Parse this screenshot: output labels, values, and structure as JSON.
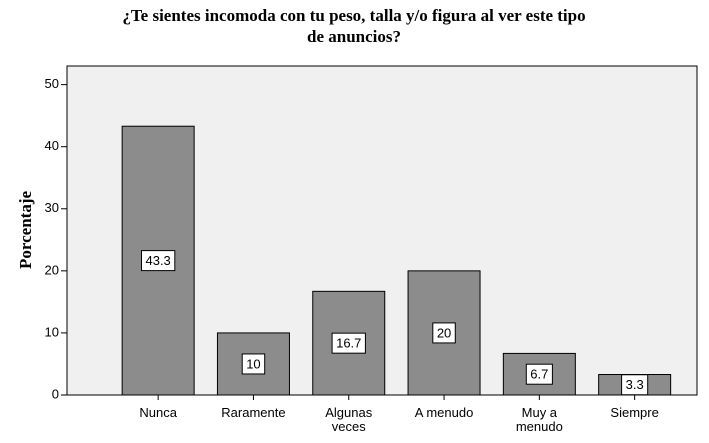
{
  "chart_data": {
    "type": "bar",
    "title": [
      "¿Te sientes incomoda con tu peso, talla y/o figura al ver este tipo",
      "de anuncios?"
    ],
    "y_label": "Porcentaje",
    "categories": [
      "Nunca",
      "Raramente",
      "Algunas veces",
      "A menudo",
      "Muy a menudo",
      "Siempre"
    ],
    "values": [
      43.3,
      10,
      16.7,
      20,
      6.7,
      3.3
    ],
    "color": "#8c8c8c",
    "ylim": [
      0,
      53
    ],
    "yticks": [
      0,
      10,
      20,
      30,
      40,
      50
    ],
    "grid": false
  }
}
